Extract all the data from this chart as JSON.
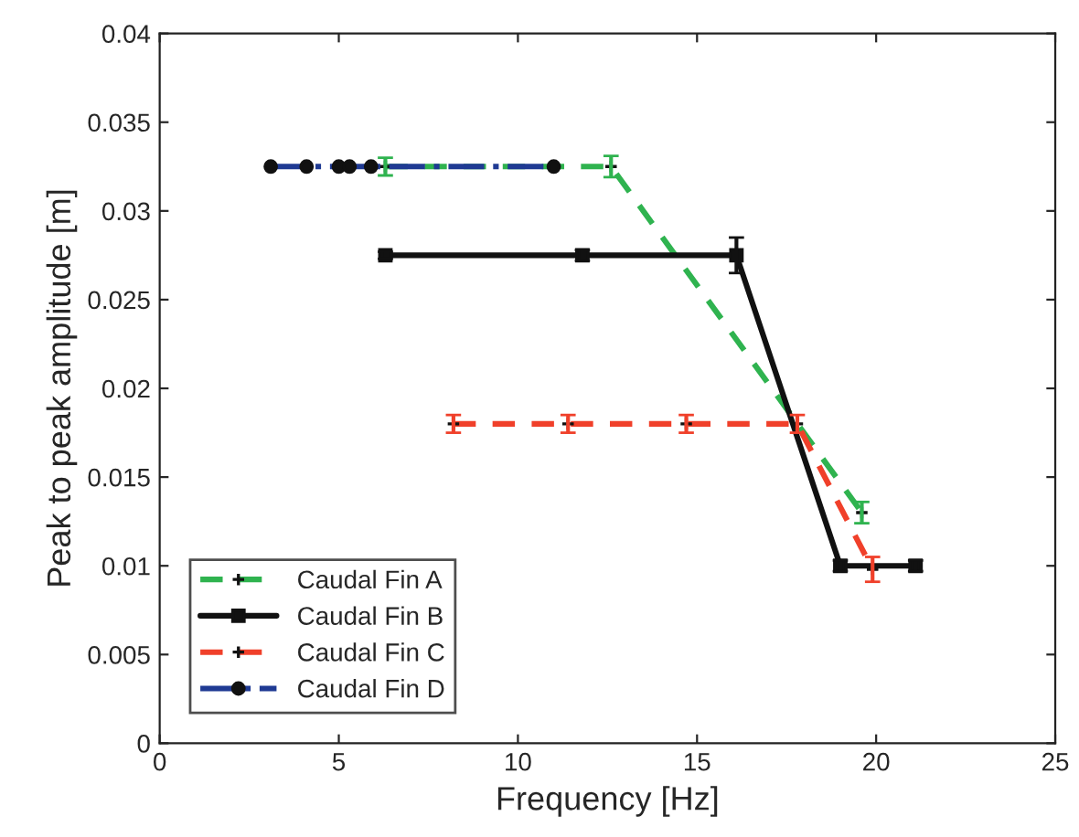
{
  "chart_data": {
    "type": "line",
    "xlabel": "Frequency [Hz]",
    "ylabel": "Peak to peak amplitude [m]",
    "xlim": [
      0,
      25
    ],
    "xticks": [
      0,
      5,
      10,
      15,
      20,
      25
    ],
    "ylim": [
      0,
      0.04
    ],
    "yticks": [
      0,
      0.005,
      0.01,
      0.015,
      0.02,
      0.025,
      0.03,
      0.035,
      0.04
    ],
    "grid": false,
    "legend": "bottom left",
    "series": [
      {
        "name": "Caudal Fin A",
        "color": "#2fb34f",
        "line_style": "dashed",
        "marker": "cross",
        "x": [
          6.3,
          12.6,
          19.6
        ],
        "values": [
          0.0325,
          0.0325,
          0.013
        ],
        "errors": [
          0.0005,
          0.0006,
          0.0006
        ]
      },
      {
        "name": "Caudal Fin B",
        "color": "#111111",
        "line_style": "solid",
        "marker": "square",
        "x": [
          6.3,
          11.8,
          16.1,
          19.0,
          21.1
        ],
        "values": [
          0.0275,
          0.0275,
          0.0275,
          0.01,
          0.01
        ],
        "errors": [
          0.0002,
          0.0003,
          0.001,
          0.0003,
          0.0003
        ]
      },
      {
        "name": "Caudal Fin C",
        "color": "#f0402a",
        "line_style": "dashed",
        "marker": "cross",
        "x": [
          8.2,
          11.4,
          14.7,
          17.8,
          19.9
        ],
        "values": [
          0.018,
          0.018,
          0.018,
          0.018,
          0.0098
        ],
        "errors": [
          0.0005,
          0.0005,
          0.0005,
          0.0005,
          0.0007
        ]
      },
      {
        "name": "Caudal Fin D",
        "color": "#1f3a93",
        "line_style": "dashdot",
        "marker": "circle",
        "x": [
          3.1,
          4.1,
          5.0,
          5.3,
          5.9,
          11.0
        ],
        "values": [
          0.0325,
          0.0325,
          0.0325,
          0.0325,
          0.0325,
          0.0325
        ]
      }
    ]
  }
}
